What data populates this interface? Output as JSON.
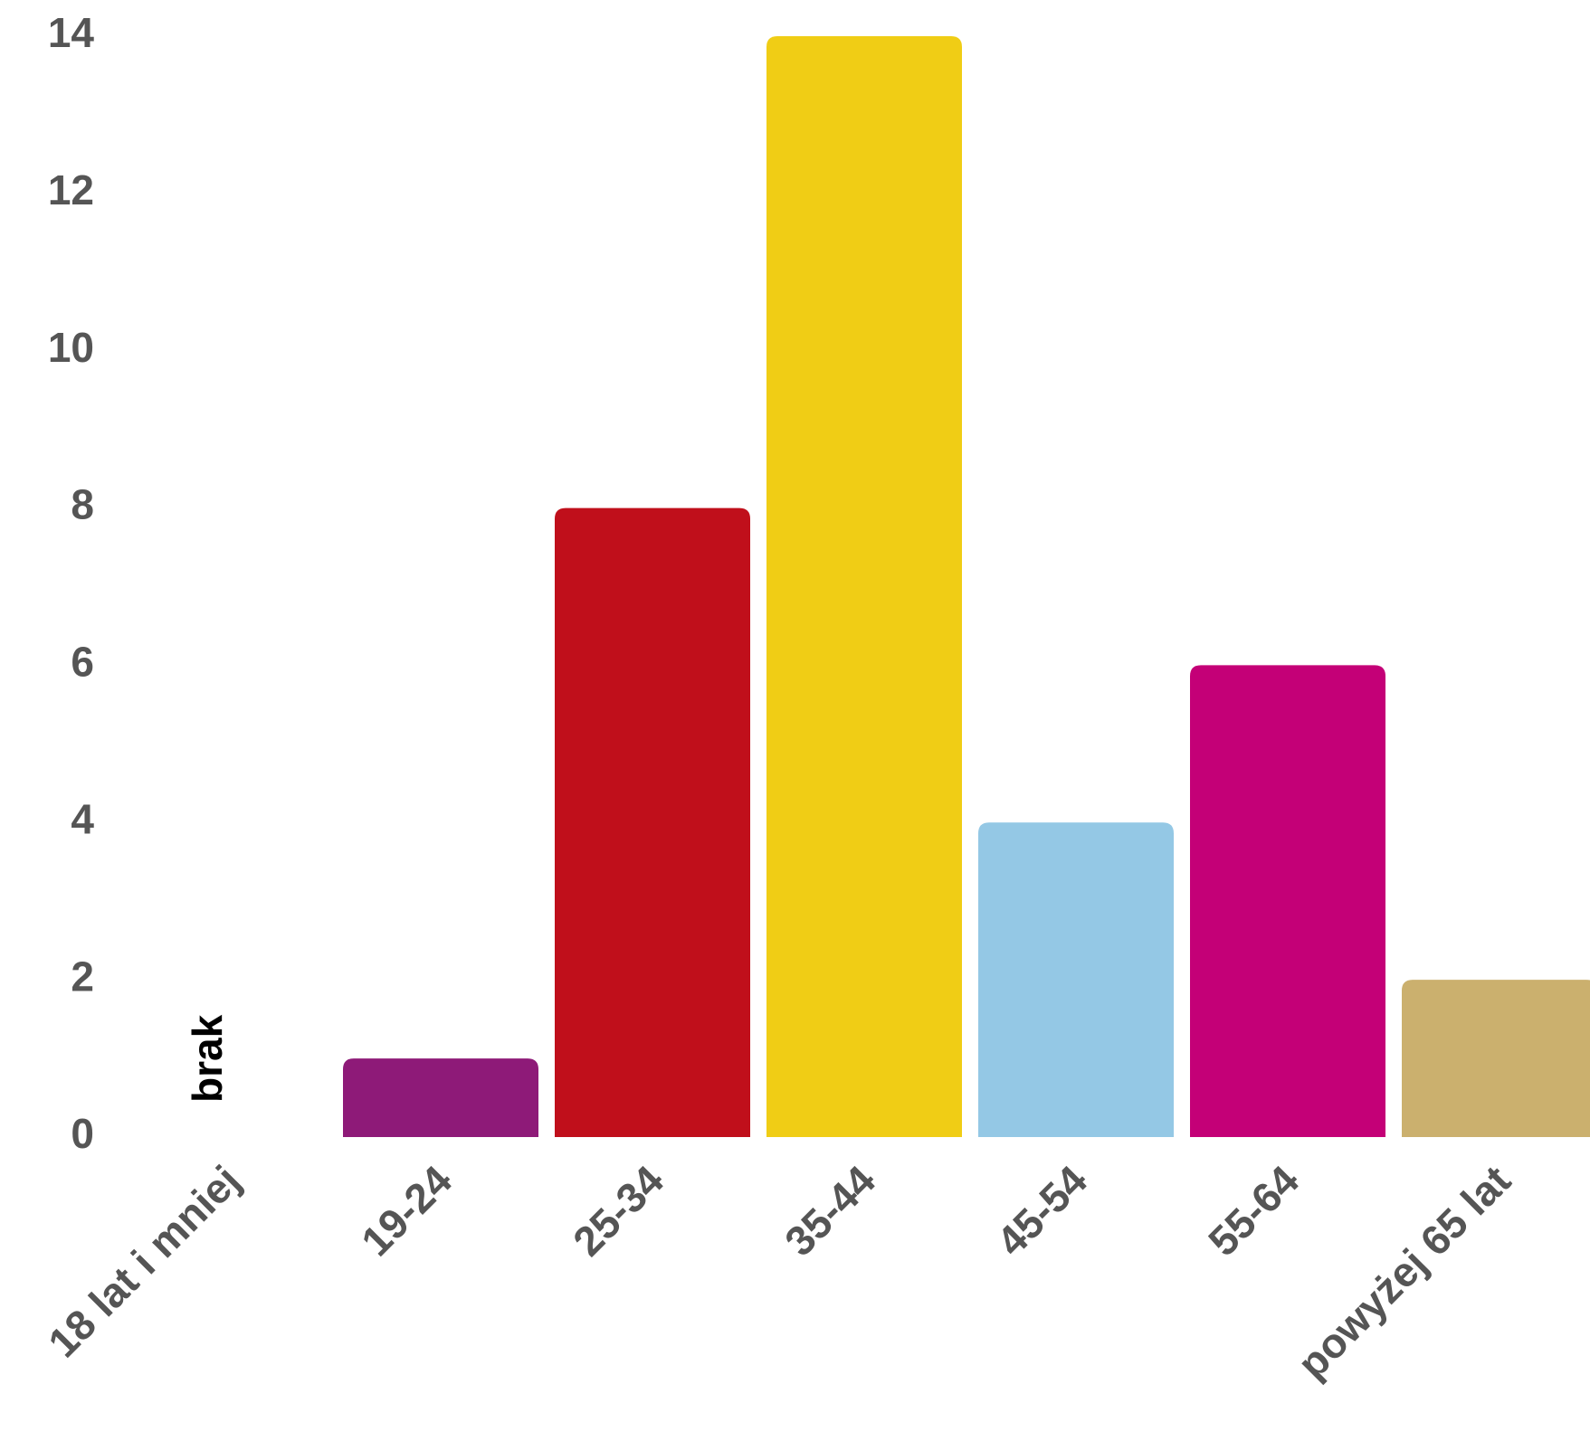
{
  "chart_data": {
    "type": "bar",
    "categories": [
      "18 lat i mniej",
      "19-24",
      "25-34",
      "35-44",
      "45-54",
      "55-64",
      "powyżej 65 lat"
    ],
    "values": [
      0,
      1,
      8,
      14,
      4,
      6,
      2
    ],
    "colors": [
      "#8e1a78",
      "#8e1a78",
      "#c00f1b",
      "#f0cd15",
      "#94c8e5",
      "#c40077",
      "#cbb06e"
    ],
    "yticks": [
      0,
      2,
      4,
      6,
      8,
      10,
      12,
      14
    ],
    "ylim": [
      0,
      14
    ],
    "grid": false,
    "annotations": [
      {
        "category": "18 lat i mniej",
        "text": "brak"
      }
    ]
  }
}
